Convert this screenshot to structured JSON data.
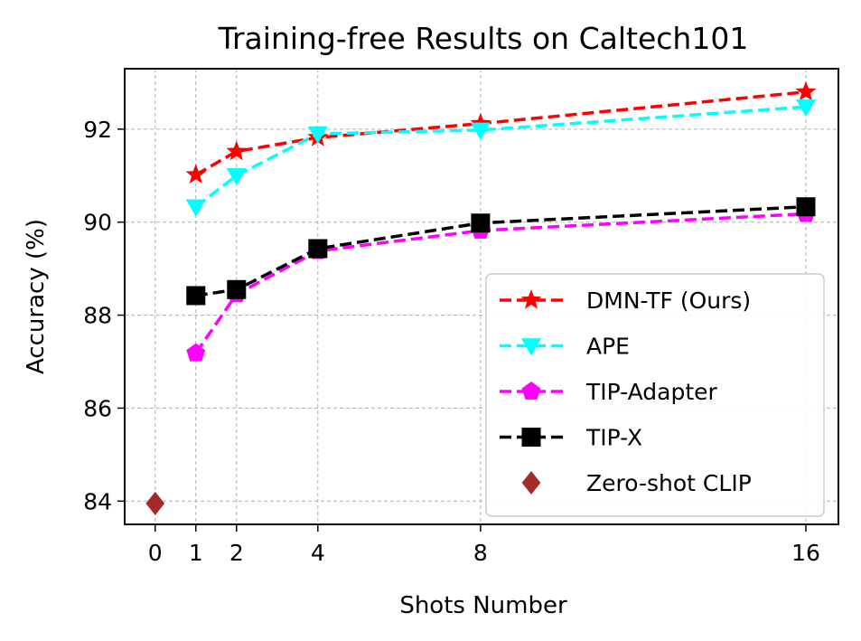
{
  "chart_data": {
    "type": "line",
    "title": "Training-free Results on Caltech101",
    "xlabel": "Shots Number",
    "ylabel": "Accuracy (%)",
    "x_ticks": [
      0,
      1,
      2,
      4,
      8,
      16
    ],
    "y_ticks": [
      84,
      86,
      88,
      90,
      92
    ],
    "xlim": [
      -0.75,
      16.8
    ],
    "ylim": [
      83.5,
      93.3
    ],
    "grid": true,
    "legend_position": "lower-right",
    "series": [
      {
        "name": "DMN-TF (Ours)",
        "x": [
          1,
          2,
          4,
          8,
          16
        ],
        "y": [
          91.02,
          91.52,
          91.82,
          92.12,
          92.8
        ],
        "color": "#ff0000",
        "marker": "star",
        "linestyle": "dashed"
      },
      {
        "name": "APE",
        "x": [
          1,
          2,
          4,
          8,
          16
        ],
        "y": [
          90.33,
          91.0,
          91.9,
          91.98,
          92.48
        ],
        "color": "#00ffff",
        "marker": "triangle-down",
        "linestyle": "dashed"
      },
      {
        "name": "TIP-Adapter",
        "x": [
          1,
          2,
          4,
          8,
          16
        ],
        "y": [
          87.18,
          88.45,
          89.38,
          89.82,
          90.18
        ],
        "color": "#ff00ff",
        "marker": "pentagon",
        "linestyle": "dashed"
      },
      {
        "name": "TIP-X",
        "x": [
          1,
          2,
          4,
          8,
          16
        ],
        "y": [
          88.42,
          88.55,
          89.43,
          89.98,
          90.33
        ],
        "color": "#000000",
        "marker": "square",
        "linestyle": "dashed"
      },
      {
        "name": "Zero-shot CLIP",
        "x": [
          0
        ],
        "y": [
          83.95
        ],
        "color": "#a52a2a",
        "marker": "diamond",
        "linestyle": "none"
      }
    ]
  }
}
